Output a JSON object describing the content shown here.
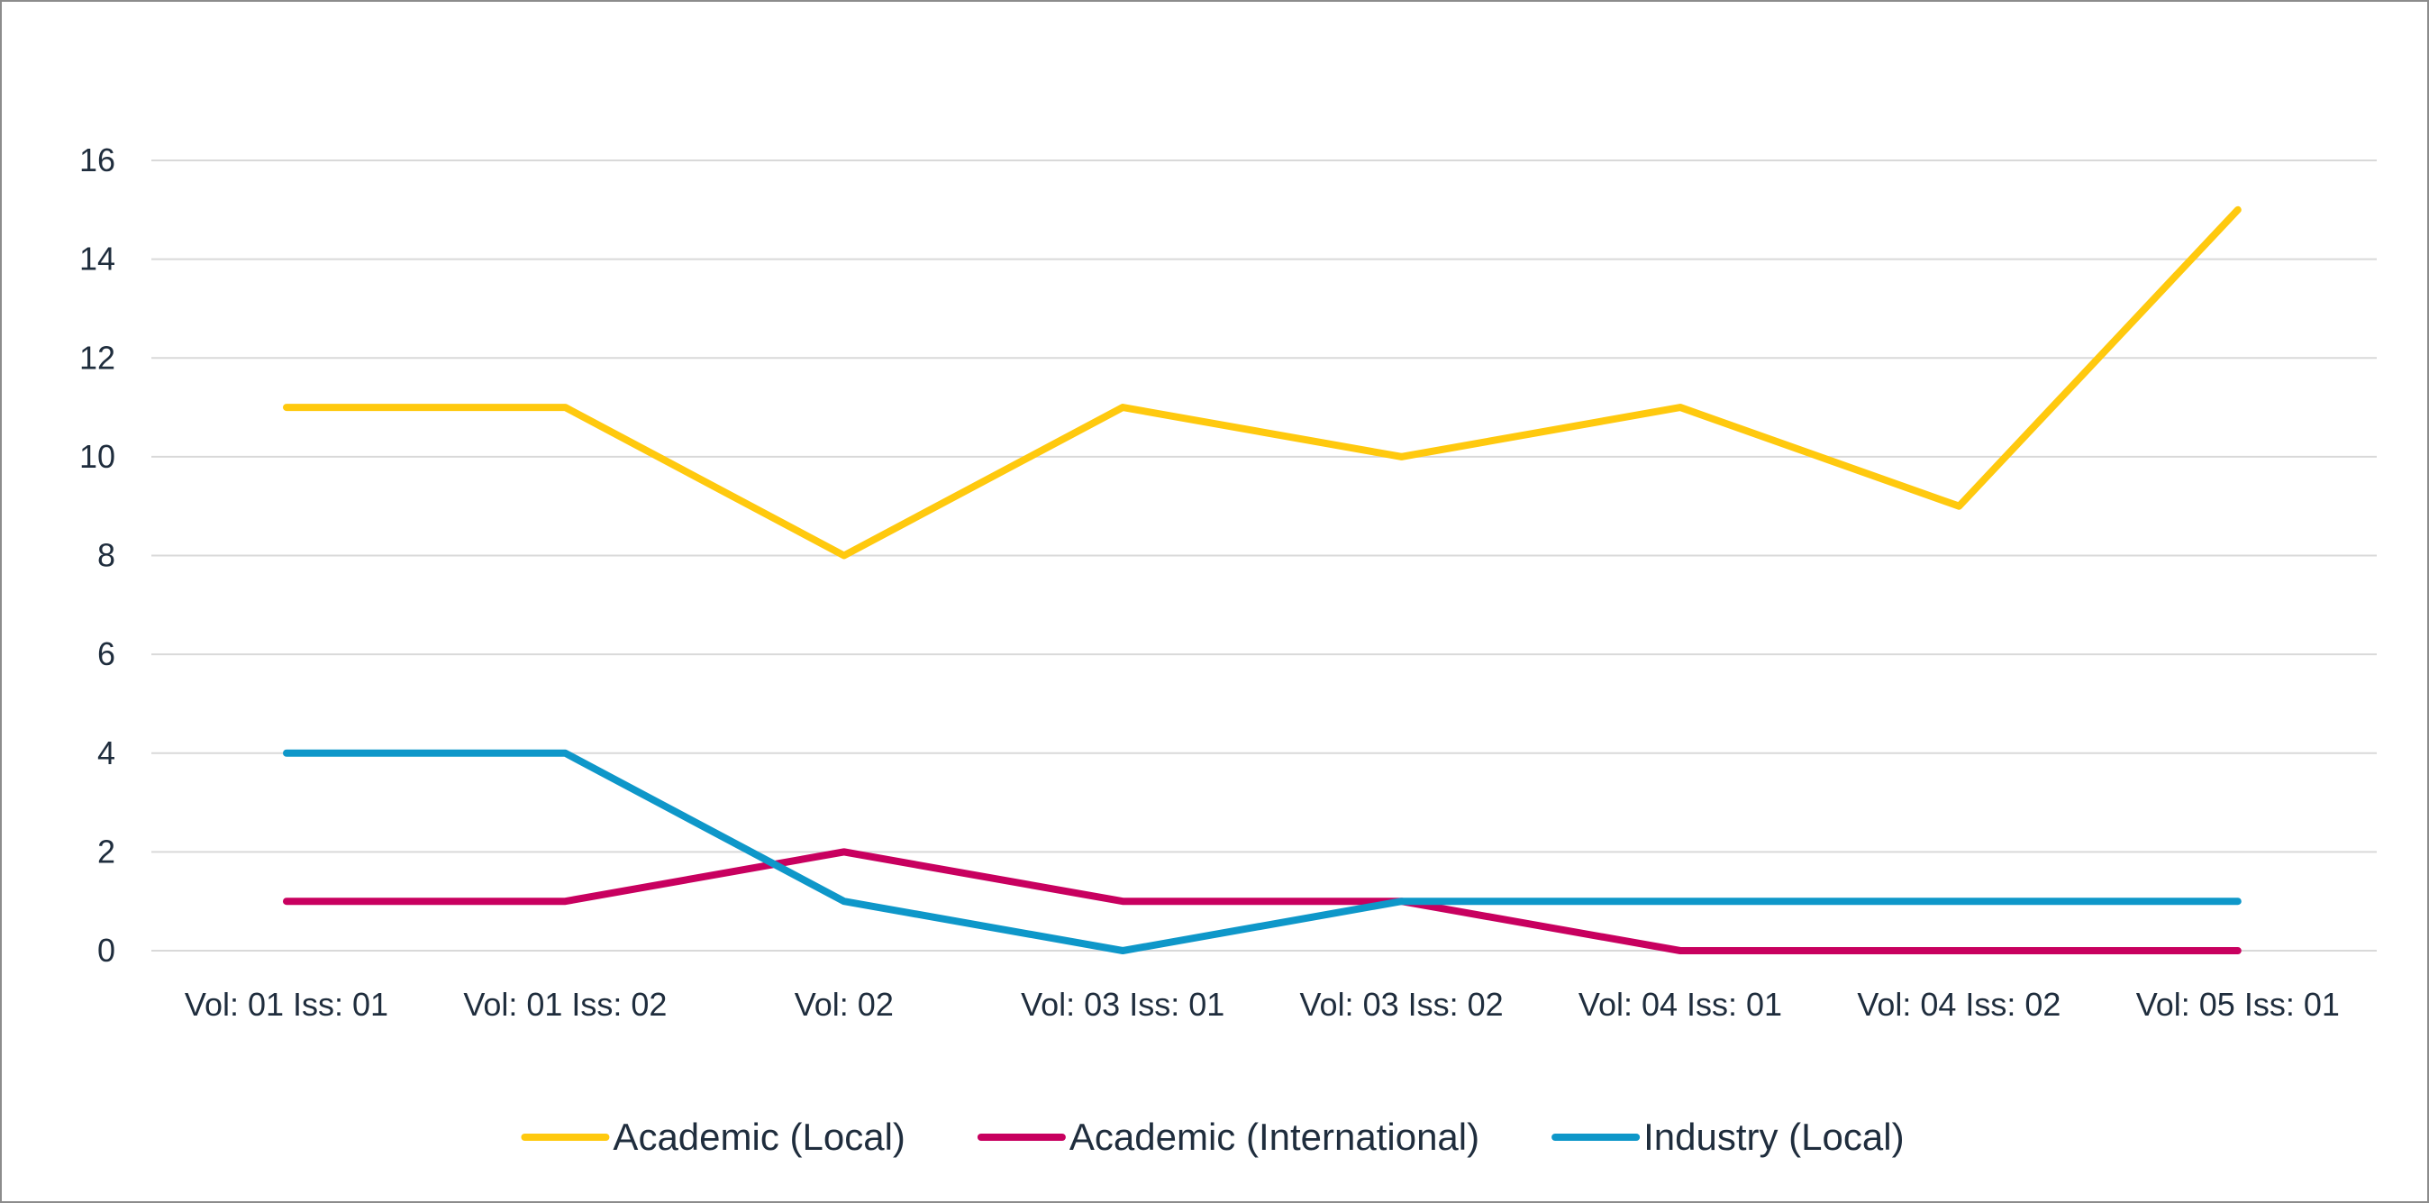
{
  "chart_data": {
    "type": "line",
    "title": "",
    "xlabel": "",
    "ylabel": "",
    "categories": [
      "Vol: 01 Iss: 01",
      "Vol: 01 Iss: 02",
      "Vol: 02",
      "Vol: 03 Iss: 01",
      "Vol: 03 Iss: 02",
      "Vol: 04 Iss: 01",
      "Vol: 04 Iss: 02",
      "Vol: 05 Iss: 01"
    ],
    "ylim": [
      0,
      16
    ],
    "yticks": [
      "0",
      "2",
      "4",
      "6",
      "8",
      "10",
      "12",
      "14",
      "16"
    ],
    "grid": true,
    "legend_position": "bottom",
    "series": [
      {
        "name": "Academic (Local)",
        "color": "#FFC90E",
        "values": [
          11,
          11,
          8,
          11,
          10,
          11,
          9,
          15
        ]
      },
      {
        "name": "Academic (International)",
        "color": "#C8005F",
        "values": [
          1,
          1,
          2,
          1,
          1,
          0,
          0,
          0
        ]
      },
      {
        "name": "Industry (Local)",
        "color": "#0E97C9",
        "values": [
          4,
          4,
          1,
          0,
          1,
          1,
          1,
          1
        ]
      }
    ]
  }
}
